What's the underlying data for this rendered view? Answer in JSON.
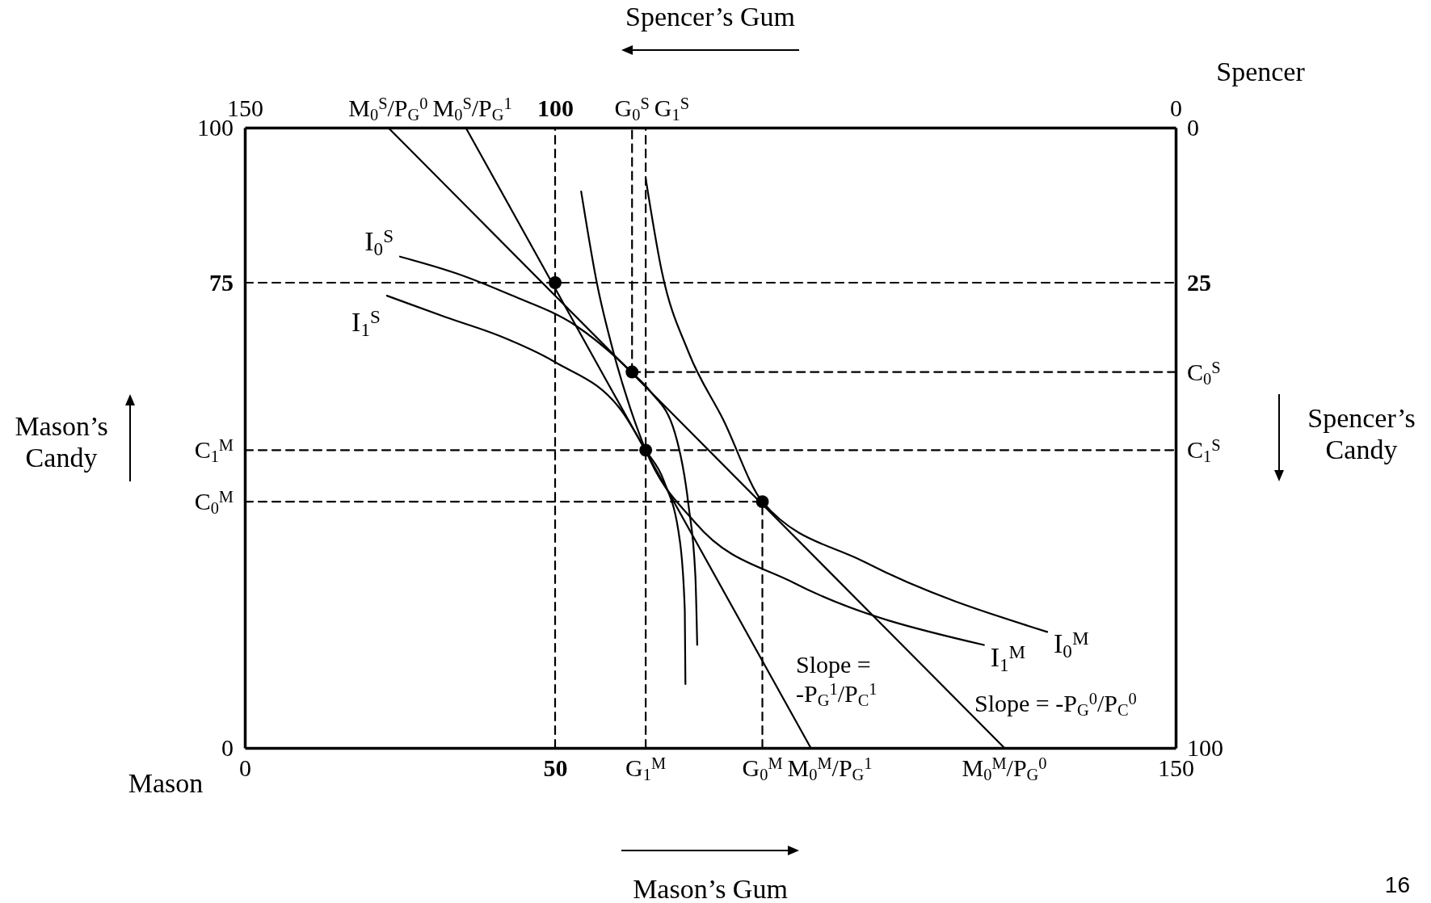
{
  "chart_data": {
    "type": "line",
    "xlabel": "Mason’s Gum",
    "ylabel": "Mason’s Candy",
    "x2label": "Spencer’s Gum",
    "y2label": "Spencer’s Candy",
    "xlim": [
      0,
      150
    ],
    "ylim": [
      0,
      100
    ],
    "x2lim": [
      150,
      0
    ],
    "y2lim": [
      100,
      0
    ],
    "xticks": [
      0,
      50,
      150
    ],
    "yticks": [
      0,
      75,
      100
    ],
    "x2ticks": [
      150,
      100,
      0
    ],
    "y2ticks": [
      0,
      25,
      100
    ],
    "grid": false,
    "series": [
      {
        "name": "I$_{0}$$^{S}$",
        "color": "#000000",
        "x": [
          25.0,
          34.1,
          42.9,
          53.3,
          62.4,
          65.4,
          69.3,
          71.5,
          72.6,
          72.9
        ],
        "values": [
          79.2,
          76.5,
          73.0,
          68.1,
          60.5,
          57.4,
          50.8,
          39.1,
          27.8,
          16.6
        ]
      },
      {
        "name": "I$_{1}$$^{S}$",
        "color": "#000000",
        "x": [
          22.9,
          32.5,
          41.1,
          49.8,
          61.1,
          64.6,
          67.5,
          70.1,
          70.9,
          71.0
        ],
        "values": [
          72.9,
          69.4,
          66.4,
          62.3,
          53.8,
          48.0,
          43.1,
          33.4,
          22.1,
          10.3
        ]
      },
      {
        "name": "I$_{0}$$^{M}$",
        "color": "#000000",
        "x": [
          64.6,
          67.2,
          71.5,
          77.1,
          83.4,
          99.8,
          129.3
        ],
        "values": [
          91.8,
          76.8,
          63.8,
          52.9,
          39.7,
          30.0,
          18.7
        ]
      },
      {
        "name": "I$_{1}$$^{M}$",
        "color": "#000000",
        "x": [
          54.2,
          56.8,
          59.4,
          62.0,
          64.6,
          72.6,
          88.5,
          119.1
        ],
        "values": [
          89.7,
          74.6,
          63.8,
          55.1,
          48.0,
          36.3,
          26.6,
          16.6
        ]
      },
      {
        "color": "#000000",
        "x": [
          23.1,
          122.4
        ],
        "values": [
          100,
          0
        ]
      },
      {
        "color": "#000000",
        "x": [
          35.6,
          91.2
        ],
        "values": [
          100,
          0
        ]
      },
      {
        "color": "#000000",
        "line_style": "dashed",
        "x": [
          50,
          50
        ],
        "values": [
          0,
          100
        ]
      },
      {
        "color": "#000000",
        "line_style": "dashed",
        "x": [
          62.4,
          62.4
        ],
        "values": [
          60.6,
          100
        ]
      },
      {
        "color": "#000000",
        "line_style": "dashed",
        "x": [
          64.6,
          64.6
        ],
        "values": [
          0,
          100
        ]
      },
      {
        "color": "#000000",
        "line_style": "dashed",
        "x": [
          83.4,
          83.4
        ],
        "values": [
          0,
          39.7
        ]
      },
      {
        "color": "#000000",
        "line_style": "dashed",
        "x": [
          0,
          150
        ],
        "values": [
          75,
          75
        ]
      },
      {
        "color": "#000000",
        "line_style": "dashed",
        "x": [
          62.4,
          150
        ],
        "values": [
          60.6,
          60.6
        ]
      },
      {
        "color": "#000000",
        "line_style": "dashed",
        "x": [
          0,
          150
        ],
        "values": [
          48,
          48
        ]
      },
      {
        "color": "#000000",
        "line_style": "dashed",
        "x": [
          0,
          83.4
        ],
        "values": [
          39.7,
          39.7
        ]
      },
      {
        "type": "scatter",
        "marker": "circle",
        "color": "#000000",
        "x": [
          50,
          62.4,
          64.6,
          83.4
        ],
        "values": [
          75,
          60.6,
          48,
          39.7
        ]
      }
    ],
    "annotations": [
      {
        "text": "G$_{1}$$^{M}$",
        "x": 64.6,
        "y": 0
      },
      {
        "text": "G$_{0}$$^{M}$",
        "x": 83.4,
        "y": 0
      },
      {
        "text": "M$_{0}$$^{M}$/P$_{G}$$^{1}$",
        "x": 91.2,
        "y": 0
      },
      {
        "text": "M$_{0}$$^{M}$/P$_{G}$$^{0}$",
        "x": 122.4,
        "y": 0
      },
      {
        "text": "M$_{0}$$^{S}$/P$_{G}$$^{0}$",
        "x": 23.1,
        "y": 100
      },
      {
        "text": "M$_{0}$$^{S}$/P$_{G}$$^{1}$",
        "x": 35.6,
        "y": 100
      },
      {
        "text": "G$_{0}$$^{S}$",
        "x": 62.4,
        "y": 100
      },
      {
        "text": "G$_{1}$$^{S}$",
        "x": 64.6,
        "y": 100
      },
      {
        "text": "C$_{0}$$^{M}$",
        "x": 0,
        "y": 39.7
      },
      {
        "text": "C$_{1}$$^{M}$",
        "x": 0,
        "y": 48
      },
      {
        "text": "C$_{0}$$^{S}$",
        "x": 150,
        "y": 60.6
      },
      {
        "text": "C$_{1}$$^{S}$",
        "x": 150,
        "y": 48
      },
      "Slope =\n-P$_{G}$$^{1}$/P$_{C}$$^{1}$",
      "Slope = -P$_{G}$$^{0}$/P$_{C}$$^{0}$",
      "Mason",
      "Spencer",
      "16"
    ]
  }
}
